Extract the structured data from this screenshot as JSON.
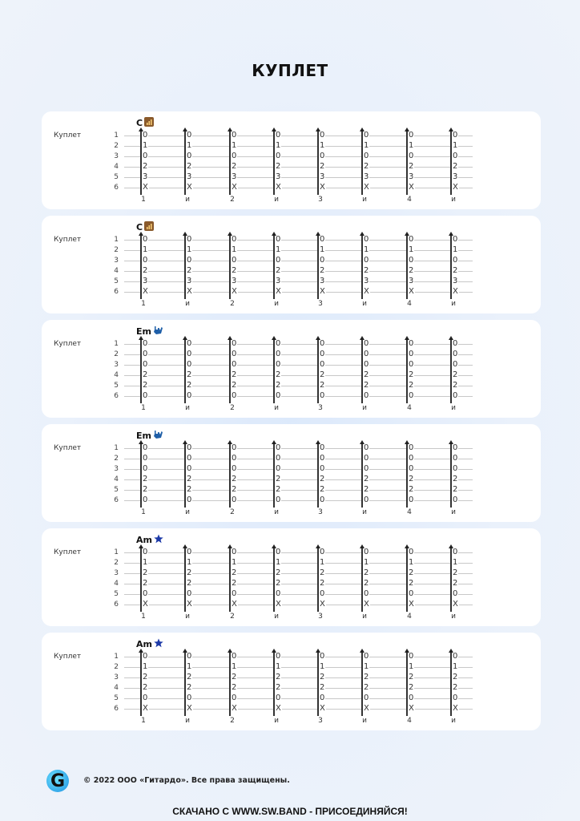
{
  "title": "КУПЛЕТ",
  "string_numbers": [
    "1",
    "2",
    "3",
    "4",
    "5",
    "6"
  ],
  "beats": [
    "1",
    "и",
    "2",
    "и",
    "3",
    "и",
    "4",
    "и"
  ],
  "blocks": [
    {
      "section": "Куплет",
      "chord": "C",
      "icon": "signal-bars-icon",
      "frets": [
        "0",
        "1",
        "0",
        "2",
        "3",
        "X"
      ]
    },
    {
      "section": "Куплет",
      "chord": "C",
      "icon": "signal-bars-icon",
      "frets": [
        "0",
        "1",
        "0",
        "2",
        "3",
        "X"
      ]
    },
    {
      "section": "Куплет",
      "chord": "Em",
      "icon": "rock-hand-icon",
      "frets": [
        "0",
        "0",
        "0",
        "2",
        "2",
        "0"
      ]
    },
    {
      "section": "Куплет",
      "chord": "Em",
      "icon": "rock-hand-icon",
      "frets": [
        "0",
        "0",
        "0",
        "2",
        "2",
        "0"
      ]
    },
    {
      "section": "Куплет",
      "chord": "Am",
      "icon": "star-icon",
      "frets": [
        "0",
        "1",
        "2",
        "2",
        "0",
        "X"
      ]
    },
    {
      "section": "Куплет",
      "chord": "Am",
      "icon": "star-icon",
      "frets": [
        "0",
        "1",
        "2",
        "2",
        "0",
        "X"
      ]
    }
  ],
  "footer": {
    "logo": "G",
    "copyright": "© 2022 ООО «Гитардо». Все права защищены.",
    "download": "СКАЧАНО С WWW.SW.BAND - ПРИСОЕДИНЯЙСЯ!"
  }
}
